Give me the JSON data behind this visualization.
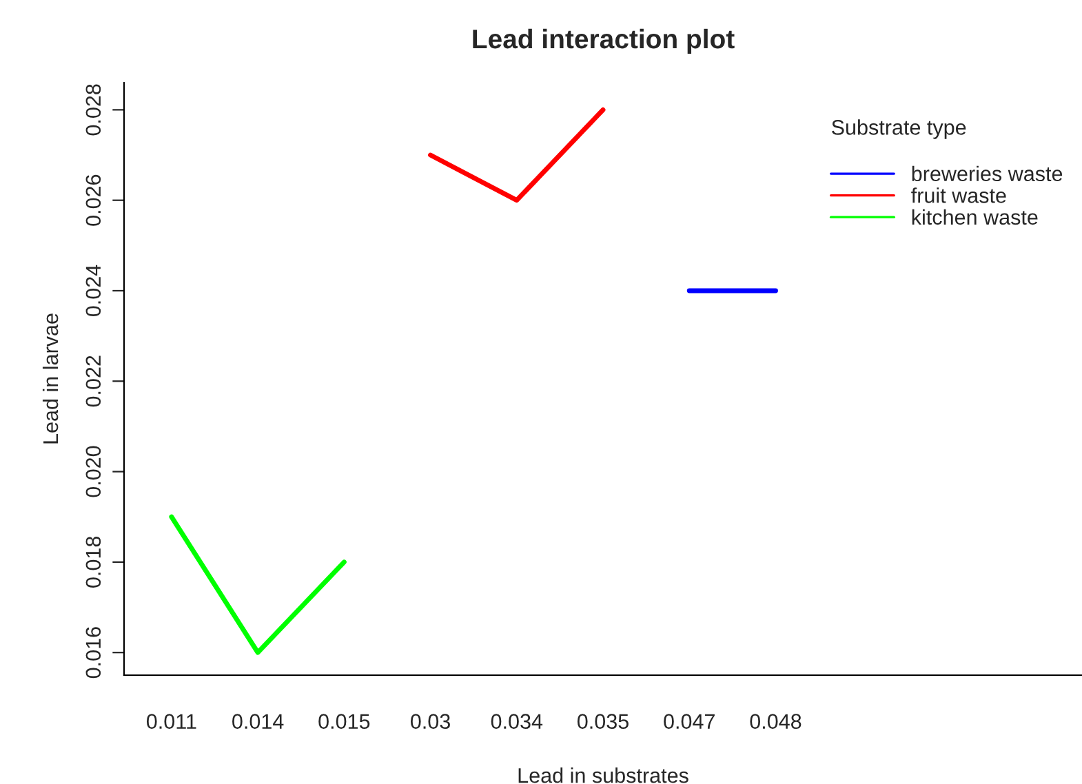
{
  "chart_data": {
    "type": "line",
    "title": "Lead interaction plot",
    "xlabel": "Lead in substrates",
    "ylabel": "Lead in larvae",
    "legend_title": "Substrate type",
    "categories": [
      "0.011",
      "0.014",
      "0.015",
      "0.03",
      "0.034",
      "0.035",
      "0.047",
      "0.048"
    ],
    "series": [
      {
        "name": "breweries waste",
        "color": "#0000ff",
        "values": [
          null,
          null,
          null,
          null,
          null,
          null,
          0.024,
          0.024
        ]
      },
      {
        "name": "fruit waste",
        "color": "#ff0000",
        "values": [
          null,
          null,
          null,
          0.027,
          0.026,
          0.028,
          null,
          null
        ]
      },
      {
        "name": "kitchen waste",
        "color": "#00ff00",
        "values": [
          0.019,
          0.016,
          0.018,
          null,
          null,
          null,
          null,
          null
        ]
      }
    ],
    "ylim": [
      0.0155,
      0.0286
    ],
    "yticks": [
      0.016,
      0.018,
      {
        "value": 0.02,
        "label": "0.020"
      },
      0.022,
      0.024,
      0.026,
      0.028
    ],
    "legend": "top right",
    "grid": false,
    "line_style": "solid",
    "marker": "none"
  }
}
